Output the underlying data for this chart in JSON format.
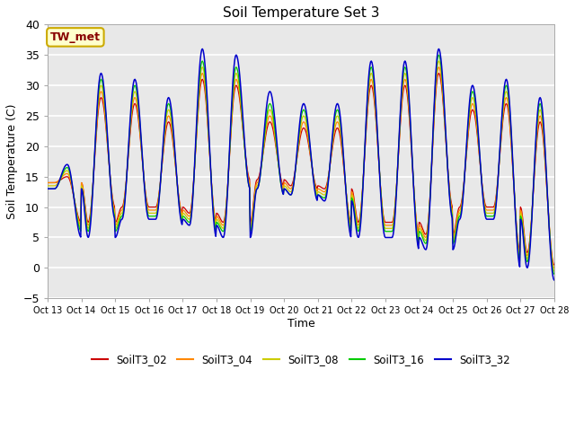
{
  "title": "Soil Temperature Set 3",
  "xlabel": "Time",
  "ylabel": "Soil Temperature (C)",
  "ylim": [
    -5,
    40
  ],
  "annotation": "TW_met",
  "series_colors": {
    "SoilT3_02": "#cc0000",
    "SoilT3_04": "#ff8800",
    "SoilT3_08": "#cccc00",
    "SoilT3_16": "#00cc00",
    "SoilT3_32": "#0000cc"
  },
  "x_tick_labels": [
    "Oct 13",
    "Oct 14",
    "Oct 15",
    "Oct 16",
    "Oct 17",
    "Oct 18",
    "Oct 19",
    "Oct 20",
    "Oct 21",
    "Oct 22",
    "Oct 23",
    "Oct 24",
    "Oct 25",
    "Oct 26",
    "Oct 27",
    "Oct 28"
  ],
  "plot_bg_color": "#e8e8e8",
  "grid_color": "#ffffff",
  "day_peaks_32": [
    17,
    32,
    31,
    28,
    36,
    35,
    29,
    27,
    27,
    34,
    34,
    36,
    30,
    31,
    28,
    0
  ],
  "day_troughs_32": [
    13,
    5,
    8,
    8,
    7,
    5,
    13,
    12,
    11,
    5,
    5,
    3,
    8,
    8,
    0,
    -2
  ],
  "day_peaks_16": [
    16.5,
    31,
    30,
    27,
    34,
    33,
    27,
    26,
    26,
    33,
    33,
    35,
    29,
    30,
    27,
    0
  ],
  "day_troughs_16": [
    13,
    6,
    8.5,
    8.5,
    7.5,
    6,
    13,
    12,
    11.5,
    6,
    6,
    4,
    8.5,
    8.5,
    1,
    -1
  ],
  "day_peaks_08": [
    16,
    30,
    29,
    26,
    33,
    32,
    26,
    25,
    25,
    32,
    32,
    34,
    28,
    29,
    26,
    0.5
  ],
  "day_troughs_08": [
    13.5,
    6.5,
    9,
    9,
    8,
    6.5,
    13.5,
    12.5,
    12,
    6.5,
    6.5,
    4.5,
    9,
    9,
    1.5,
    -0.5
  ],
  "day_peaks_04": [
    15.5,
    29,
    28,
    25,
    32,
    31,
    25,
    24,
    24,
    31,
    31,
    33,
    27,
    28,
    25,
    1
  ],
  "day_troughs_04": [
    14,
    7,
    9.5,
    9.5,
    8.5,
    7,
    14,
    13,
    12.5,
    7,
    7,
    5,
    9.5,
    9.5,
    2,
    0
  ],
  "day_peaks_02": [
    15,
    28,
    27,
    24,
    31,
    30,
    24,
    23,
    23,
    30,
    30,
    32,
    26,
    27,
    24,
    1.5
  ],
  "day_troughs_02": [
    14,
    7.5,
    10,
    10,
    9,
    7.5,
    14.5,
    13.5,
    13,
    7.5,
    7.5,
    5.5,
    10,
    10,
    2.5,
    0.5
  ]
}
